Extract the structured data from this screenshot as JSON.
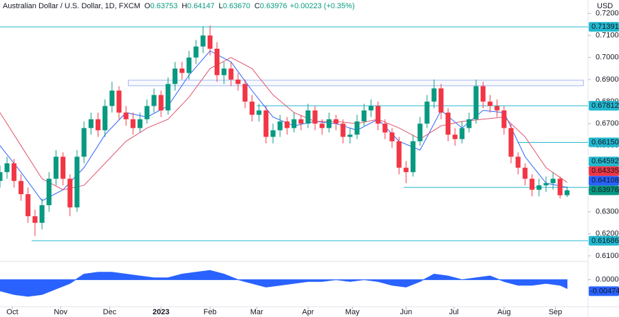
{
  "chart_data": {
    "type": "candlestick",
    "title": "Australian Dollar / U.S. Dollar, 1D, FXCM",
    "ohlc": [
      {
        "key": "O",
        "value": "0.63753"
      },
      {
        "key": "H",
        "value": "0.64147"
      },
      {
        "key": "L",
        "value": "0.63670"
      },
      {
        "key": "C",
        "value": "0.63976"
      }
    ],
    "change": "+0.00223 (+0.35%)",
    "currency": "USD",
    "up_color": "#089981",
    "down_color": "#f23645",
    "xlim": [
      0,
      252
    ],
    "xticks": [
      {
        "value": 5.3,
        "label": "Oct"
      },
      {
        "value": 26,
        "label": "Nov"
      },
      {
        "value": 47,
        "label": "Dec"
      },
      {
        "value": 69,
        "label": "2023"
      },
      {
        "value": 90,
        "label": "Feb"
      },
      {
        "value": 110,
        "label": "Mar"
      },
      {
        "value": 132,
        "label": "Apr"
      },
      {
        "value": 151,
        "label": "May"
      },
      {
        "value": 174,
        "label": "Jun"
      },
      {
        "value": 194.5,
        "label": "Jul"
      },
      {
        "value": 216,
        "label": "Aug"
      },
      {
        "value": 238,
        "label": "Sep"
      }
    ],
    "ylim": [
      0.6078,
      0.7261
    ],
    "yticks": [
      {
        "value": 0.61,
        "label": "0.61000"
      },
      {
        "value": 0.62,
        "label": "0.62000"
      },
      {
        "value": 0.63,
        "label": "0.63000"
      },
      {
        "value": 0.64,
        "label": "0.64000"
      },
      {
        "value": 0.65,
        "label": "0.65000"
      },
      {
        "value": 0.66,
        "label": "0.66000"
      },
      {
        "value": 0.67,
        "label": "0.67000"
      },
      {
        "value": 0.68,
        "label": "0.68000"
      },
      {
        "value": 0.69,
        "label": "0.69000"
      },
      {
        "value": 0.7,
        "label": "0.70000"
      },
      {
        "value": 0.71,
        "label": "0.71000"
      },
      {
        "value": 0.72,
        "label": "0.72000"
      }
    ],
    "candle_x": [
      0,
      3,
      6,
      9,
      12,
      15,
      18,
      21,
      24,
      27,
      30,
      33,
      36,
      39,
      42,
      45,
      48,
      51,
      54,
      57,
      60,
      63,
      66,
      69,
      72,
      75,
      78,
      81,
      84,
      87,
      90,
      93,
      96,
      99,
      102,
      105,
      108,
      111,
      114,
      117,
      120,
      123,
      126,
      129,
      132,
      135,
      138,
      141,
      144,
      147,
      150,
      153,
      156,
      159,
      162,
      165,
      168,
      171,
      174,
      177,
      180,
      183,
      186,
      189,
      192,
      195,
      198,
      201,
      204,
      207,
      210,
      213,
      216,
      219,
      222,
      225,
      228,
      231,
      234,
      237,
      240,
      243
    ],
    "candles": [
      [
        0.644,
        0.651,
        0.641,
        0.648
      ],
      [
        0.648,
        0.655,
        0.645,
        0.652
      ],
      [
        0.652,
        0.654,
        0.641,
        0.644
      ],
      [
        0.644,
        0.647,
        0.635,
        0.638
      ],
      [
        0.638,
        0.641,
        0.625,
        0.628
      ],
      [
        0.628,
        0.631,
        0.619,
        0.625
      ],
      [
        0.625,
        0.636,
        0.622,
        0.633
      ],
      [
        0.633,
        0.648,
        0.63,
        0.645
      ],
      [
        0.645,
        0.658,
        0.642,
        0.655
      ],
      [
        0.655,
        0.657,
        0.642,
        0.645
      ],
      [
        0.645,
        0.647,
        0.628,
        0.632
      ],
      [
        0.632,
        0.658,
        0.63,
        0.655
      ],
      [
        0.655,
        0.671,
        0.652,
        0.668
      ],
      [
        0.668,
        0.675,
        0.665,
        0.672
      ],
      [
        0.672,
        0.675,
        0.664,
        0.667
      ],
      [
        0.667,
        0.681,
        0.664,
        0.678
      ],
      [
        0.678,
        0.689,
        0.675,
        0.685
      ],
      [
        0.685,
        0.687,
        0.672,
        0.675
      ],
      [
        0.675,
        0.678,
        0.669,
        0.672
      ],
      [
        0.672,
        0.675,
        0.665,
        0.668
      ],
      [
        0.668,
        0.675,
        0.666,
        0.672
      ],
      [
        0.672,
        0.681,
        0.67,
        0.678
      ],
      [
        0.678,
        0.686,
        0.675,
        0.683
      ],
      [
        0.683,
        0.685,
        0.673,
        0.676
      ],
      [
        0.676,
        0.691,
        0.674,
        0.688
      ],
      [
        0.688,
        0.698,
        0.685,
        0.695
      ],
      [
        0.695,
        0.698,
        0.69,
        0.693
      ],
      [
        0.693,
        0.703,
        0.69,
        0.7
      ],
      [
        0.7,
        0.708,
        0.697,
        0.705
      ],
      [
        0.705,
        0.7142,
        0.702,
        0.71
      ],
      [
        0.71,
        0.7145,
        0.701,
        0.704
      ],
      [
        0.704,
        0.707,
        0.689,
        0.692
      ],
      [
        0.692,
        0.698,
        0.688,
        0.695
      ],
      [
        0.695,
        0.698,
        0.687,
        0.69
      ],
      [
        0.69,
        0.693,
        0.685,
        0.688
      ],
      [
        0.688,
        0.69,
        0.677,
        0.68
      ],
      [
        0.68,
        0.683,
        0.671,
        0.674
      ],
      [
        0.674,
        0.679,
        0.671,
        0.676
      ],
      [
        0.676,
        0.678,
        0.661,
        0.664
      ],
      [
        0.664,
        0.67,
        0.661,
        0.667
      ],
      [
        0.667,
        0.674,
        0.664,
        0.671
      ],
      [
        0.671,
        0.673,
        0.665,
        0.668
      ],
      [
        0.668,
        0.675,
        0.666,
        0.672
      ],
      [
        0.672,
        0.674,
        0.667,
        0.67
      ],
      [
        0.67,
        0.679,
        0.668,
        0.676
      ],
      [
        0.676,
        0.678,
        0.667,
        0.67
      ],
      [
        0.67,
        0.672,
        0.665,
        0.668
      ],
      [
        0.668,
        0.675,
        0.666,
        0.672
      ],
      [
        0.672,
        0.674,
        0.667,
        0.67
      ],
      [
        0.67,
        0.672,
        0.661,
        0.664
      ],
      [
        0.664,
        0.668,
        0.661,
        0.665
      ],
      [
        0.665,
        0.674,
        0.663,
        0.671
      ],
      [
        0.671,
        0.679,
        0.669,
        0.676
      ],
      [
        0.676,
        0.681,
        0.673,
        0.678
      ],
      [
        0.678,
        0.68,
        0.667,
        0.67
      ],
      [
        0.67,
        0.672,
        0.663,
        0.666
      ],
      [
        0.666,
        0.668,
        0.659,
        0.662
      ],
      [
        0.662,
        0.664,
        0.647,
        0.65
      ],
      [
        0.65,
        0.653,
        0.643,
        0.648
      ],
      [
        0.648,
        0.665,
        0.646,
        0.662
      ],
      [
        0.662,
        0.673,
        0.66,
        0.67
      ],
      [
        0.67,
        0.683,
        0.668,
        0.68
      ],
      [
        0.68,
        0.69,
        0.677,
        0.686
      ],
      [
        0.686,
        0.688,
        0.672,
        0.675
      ],
      [
        0.675,
        0.677,
        0.662,
        0.665
      ],
      [
        0.665,
        0.668,
        0.66,
        0.663
      ],
      [
        0.663,
        0.671,
        0.661,
        0.668
      ],
      [
        0.668,
        0.675,
        0.666,
        0.672
      ],
      [
        0.672,
        0.69,
        0.67,
        0.687
      ],
      [
        0.687,
        0.689,
        0.677,
        0.68
      ],
      [
        0.68,
        0.683,
        0.675,
        0.678
      ],
      [
        0.678,
        0.681,
        0.673,
        0.676
      ],
      [
        0.676,
        0.678,
        0.665,
        0.668
      ],
      [
        0.668,
        0.67,
        0.652,
        0.655
      ],
      [
        0.655,
        0.657,
        0.647,
        0.65
      ],
      [
        0.65,
        0.652,
        0.642,
        0.645
      ],
      [
        0.645,
        0.647,
        0.637,
        0.64
      ],
      [
        0.64,
        0.645,
        0.637,
        0.642
      ],
      [
        0.642,
        0.646,
        0.639,
        0.643
      ],
      [
        0.643,
        0.648,
        0.64,
        0.645
      ],
      [
        0.645,
        0.646,
        0.636,
        0.6375
      ],
      [
        0.63753,
        0.64147,
        0.6367,
        0.63976
      ]
    ],
    "moving_averages": [
      {
        "color": "#2962ff",
        "x": [
          0,
          9,
          18,
          27,
          36,
          45,
          54,
          63,
          72,
          81,
          90,
          99,
          108,
          117,
          126,
          135,
          144,
          153,
          162,
          171,
          180,
          189,
          198,
          207,
          216,
          225,
          234,
          243
        ],
        "values": [
          0.66,
          0.648,
          0.635,
          0.64,
          0.65,
          0.665,
          0.675,
          0.673,
          0.678,
          0.692,
          0.703,
          0.698,
          0.685,
          0.673,
          0.669,
          0.671,
          0.67,
          0.667,
          0.672,
          0.662,
          0.658,
          0.676,
          0.668,
          0.676,
          0.675,
          0.655,
          0.643,
          0.64108
        ]
      },
      {
        "color": "#e0516a",
        "x": [
          0,
          9,
          18,
          27,
          36,
          45,
          54,
          63,
          72,
          81,
          90,
          99,
          108,
          117,
          126,
          135,
          144,
          153,
          162,
          171,
          180,
          189,
          198,
          207,
          216,
          225,
          234,
          243
        ],
        "values": [
          0.675,
          0.66,
          0.645,
          0.64,
          0.642,
          0.652,
          0.662,
          0.668,
          0.672,
          0.682,
          0.695,
          0.7,
          0.695,
          0.683,
          0.675,
          0.671,
          0.671,
          0.67,
          0.672,
          0.668,
          0.663,
          0.669,
          0.671,
          0.672,
          0.673,
          0.664,
          0.65,
          0.64335
        ]
      }
    ],
    "levels": [
      {
        "value": 0.71391,
        "start": 0
      },
      {
        "value": 0.67812,
        "start": 110
      },
      {
        "value": 0.6615,
        "start": 222
      },
      {
        "value": 0.64108,
        "start": 173
      },
      {
        "value": 0.61686,
        "start": 13.6
      }
    ],
    "level_color": "#22b8cf",
    "zone": {
      "low": 0.6872,
      "high": 0.6897,
      "start": 55,
      "end": 250
    },
    "price_labels": [
      {
        "value": 0.71391,
        "label": "0.71391",
        "color": "#22b8cf"
      },
      {
        "value": 0.67812,
        "label": "0.67812",
        "color": "#22b8cf"
      },
      {
        "value": 0.6615,
        "label": "0.66150",
        "color": "#22b8cf"
      },
      {
        "value": 0.64592,
        "label": "0.64592",
        "color": "#22b8cf"
      },
      {
        "value": 0.64335,
        "label": "0.64335",
        "color": "#f23645"
      },
      {
        "value": 0.64108,
        "label": "0.64108",
        "color": "#2962ff"
      },
      {
        "value": 0.63976,
        "label": "0.63976",
        "color": "#089981"
      },
      {
        "value": 0.61686,
        "label": "0.61686",
        "color": "#22b8cf"
      }
    ],
    "oscillator": {
      "color": "#2962ff",
      "ylim": [
        -0.0142,
        0.0091
      ],
      "yticks": [
        {
          "value": 0,
          "label": "0.00000"
        }
      ],
      "last_label": {
        "value": -0.00474,
        "label": "-0.00474"
      },
      "x": [
        0,
        6,
        12,
        18,
        24,
        30,
        36,
        42,
        48,
        54,
        60,
        66,
        72,
        78,
        84,
        90,
        96,
        102,
        108,
        114,
        120,
        126,
        132,
        138,
        144,
        150,
        156,
        162,
        168,
        174,
        180,
        186,
        192,
        198,
        204,
        210,
        216,
        222,
        228,
        234,
        240,
        243
      ],
      "values": [
        -0.006,
        -0.008,
        -0.009,
        -0.008,
        -0.005,
        -0.002,
        0.003,
        0.004,
        0.004,
        0.003,
        0.002,
        0.001,
        0.001,
        0.003,
        0.004,
        0.005,
        0.003,
        0.0,
        -0.002,
        -0.004,
        -0.003,
        -0.002,
        -0.001,
        -0.001,
        0.0,
        -0.001,
        0.0,
        -0.001,
        -0.003,
        -0.004,
        -0.001,
        0.003,
        0.002,
        0.0,
        0.001,
        0.002,
        -0.001,
        -0.003,
        -0.003,
        -0.002,
        -0.003,
        -0.00474
      ]
    }
  }
}
